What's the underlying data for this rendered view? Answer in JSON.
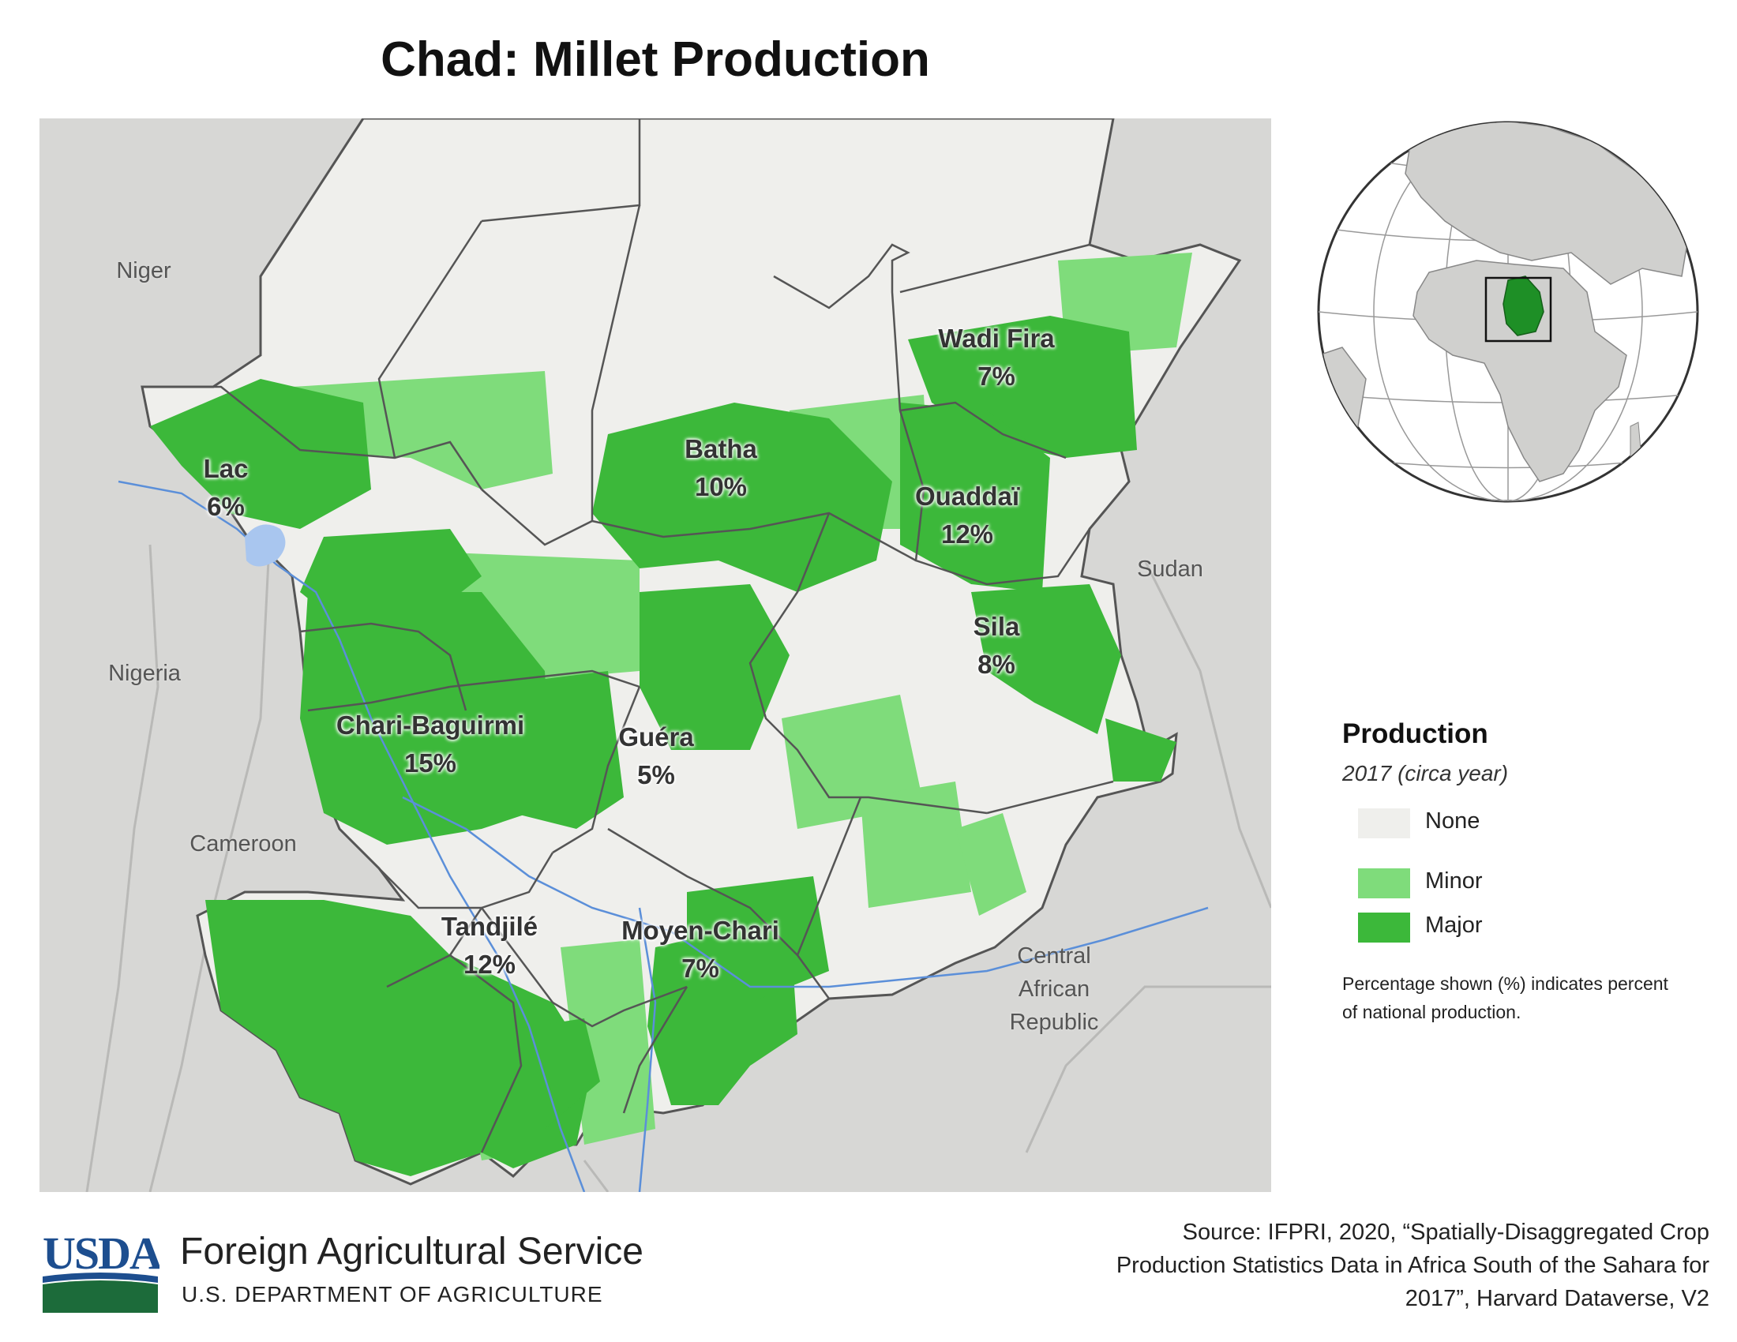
{
  "title": "Chad: Millet Production",
  "map": {
    "regions": [
      {
        "name": "Lac",
        "percent": "6%"
      },
      {
        "name": "Batha",
        "percent": "10%"
      },
      {
        "name": "Wadi Fira",
        "percent": "7%"
      },
      {
        "name": "Ouaddaï",
        "percent": "12%"
      },
      {
        "name": "Sila",
        "percent": "8%"
      },
      {
        "name": "Chari-Baguirmi",
        "percent": "15%"
      },
      {
        "name": "Guéra",
        "percent": "5%"
      },
      {
        "name": "Tandjilé",
        "percent": "12%"
      },
      {
        "name": "Moyen-Chari",
        "percent": "7%"
      }
    ],
    "countries": {
      "niger": "Niger",
      "nigeria": "Nigeria",
      "cameroon": "Cameroon",
      "sudan": "Sudan",
      "car": "Central African Republic"
    },
    "colors": {
      "outside": "#d7d7d5",
      "chad_none": "#efefec",
      "minor": "#7fdc7b",
      "major": "#3cb83a",
      "border": "#555555",
      "river": "#5b8fd9",
      "lake": "#a9c6ef"
    }
  },
  "legend": {
    "title": "Production",
    "subtitle": "2017 (circa year)",
    "items": [
      {
        "label": "None",
        "color": "#efefec"
      },
      {
        "label": "Minor",
        "color": "#7fdc7b"
      },
      {
        "label": "Major",
        "color": "#3cb83a"
      }
    ],
    "note": "Percentage shown (%) indicates percent of national production."
  },
  "locator": {
    "highlight_color": "#1e8f26",
    "icon": "globe-locator-icon"
  },
  "footer": {
    "logo_text": "USDA",
    "agency": "Foreign Agricultural Service",
    "department": "U.S. DEPARTMENT OF AGRICULTURE",
    "source": "Source: IFPRI, 2020, “Spatially-Disaggregated Crop Production Statistics Data in Africa South of the Sahara for 2017”, Harvard Dataverse, V2"
  }
}
